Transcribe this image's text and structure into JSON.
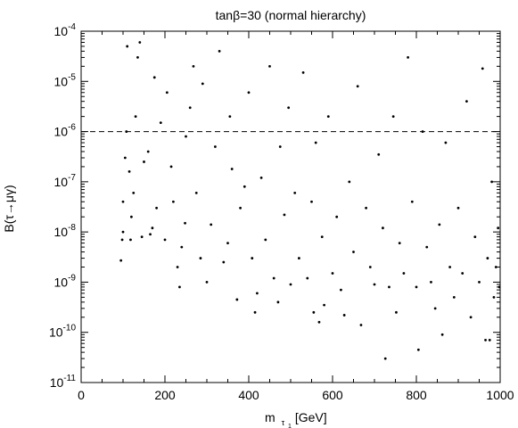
{
  "chart_data": {
    "type": "scatter",
    "title": "tanβ=30 (normal hierarchy)",
    "xlabel": {
      "main": "m",
      "sub": "τ",
      "subsub": "1",
      "unit": " [GeV]"
    },
    "ylabel": "B(τ→μγ)",
    "x_scale": "linear",
    "y_scale": "log",
    "xlim": [
      0,
      1000
    ],
    "ylim": [
      1e-11,
      0.0001
    ],
    "x_ticks": [
      {
        "value": 0,
        "label": "0"
      },
      {
        "value": 200,
        "label": "200"
      },
      {
        "value": 400,
        "label": "400"
      },
      {
        "value": 600,
        "label": "600"
      },
      {
        "value": 800,
        "label": "800"
      },
      {
        "value": 1000,
        "label": "1000"
      }
    ],
    "y_ticks": [
      {
        "value": 1e-11,
        "base": "10",
        "exp": "-11"
      },
      {
        "value": 1e-10,
        "base": "10",
        "exp": "-10"
      },
      {
        "value": 1e-09,
        "base": "10",
        "exp": "-9"
      },
      {
        "value": 1e-08,
        "base": "10",
        "exp": "-8"
      },
      {
        "value": 1e-07,
        "base": "10",
        "exp": "-7"
      },
      {
        "value": 1e-06,
        "base": "10",
        "exp": "-6"
      },
      {
        "value": 1e-05,
        "base": "10",
        "exp": "-5"
      },
      {
        "value": 0.0001,
        "base": "10",
        "exp": "-4"
      }
    ],
    "reference_line": {
      "y": 1e-06,
      "style": "dashed"
    },
    "grid": false,
    "legend": "none",
    "series": [
      {
        "color": "#000000",
        "points": [
          [
            95,
            2.7e-09
          ],
          [
            98,
            7e-09
          ],
          [
            100,
            1e-08
          ],
          [
            100,
            4e-08
          ],
          [
            105,
            3e-07
          ],
          [
            108,
            1e-06
          ],
          [
            110,
            5e-05
          ],
          [
            115,
            1.6e-07
          ],
          [
            118,
            7e-09
          ],
          [
            120,
            2e-08
          ],
          [
            125,
            6e-08
          ],
          [
            130,
            2e-06
          ],
          [
            135,
            3e-05
          ],
          [
            140,
            6e-05
          ],
          [
            145,
            8e-09
          ],
          [
            150,
            2.5e-07
          ],
          [
            160,
            4e-07
          ],
          [
            165,
            9e-09
          ],
          [
            170,
            1.2e-08
          ],
          [
            175,
            1.2e-05
          ],
          [
            180,
            3e-08
          ],
          [
            190,
            1.5e-06
          ],
          [
            200,
            7e-09
          ],
          [
            205,
            6e-06
          ],
          [
            215,
            2e-07
          ],
          [
            220,
            4e-08
          ],
          [
            230,
            2e-09
          ],
          [
            235,
            8e-10
          ],
          [
            240,
            5e-09
          ],
          [
            248,
            1.5e-08
          ],
          [
            250,
            8e-07
          ],
          [
            260,
            3e-06
          ],
          [
            268,
            2e-05
          ],
          [
            275,
            6e-08
          ],
          [
            285,
            3e-09
          ],
          [
            290,
            9e-06
          ],
          [
            300,
            1e-09
          ],
          [
            310,
            1.4e-08
          ],
          [
            320,
            5e-07
          ],
          [
            330,
            4e-05
          ],
          [
            340,
            2.5e-09
          ],
          [
            350,
            6e-09
          ],
          [
            355,
            2e-06
          ],
          [
            360,
            1.8e-07
          ],
          [
            372,
            4.5e-10
          ],
          [
            380,
            3e-08
          ],
          [
            390,
            8e-08
          ],
          [
            400,
            6e-06
          ],
          [
            408,
            3e-09
          ],
          [
            415,
            2.5e-10
          ],
          [
            420,
            6e-10
          ],
          [
            430,
            1.2e-07
          ],
          [
            440,
            7e-09
          ],
          [
            450,
            2e-05
          ],
          [
            460,
            1.2e-09
          ],
          [
            470,
            4e-10
          ],
          [
            475,
            5e-07
          ],
          [
            485,
            2.2e-08
          ],
          [
            495,
            3e-06
          ],
          [
            500,
            9e-10
          ],
          [
            510,
            6e-08
          ],
          [
            520,
            3e-09
          ],
          [
            530,
            1.5e-05
          ],
          [
            540,
            1.2e-09
          ],
          [
            550,
            4e-08
          ],
          [
            555,
            2.5e-10
          ],
          [
            560,
            6e-07
          ],
          [
            568,
            1.6e-10
          ],
          [
            575,
            8e-09
          ],
          [
            580,
            3.5e-10
          ],
          [
            590,
            2e-06
          ],
          [
            600,
            1.5e-09
          ],
          [
            610,
            2e-08
          ],
          [
            620,
            7e-10
          ],
          [
            628,
            2.2e-10
          ],
          [
            640,
            1e-07
          ],
          [
            650,
            4e-09
          ],
          [
            660,
            8e-06
          ],
          [
            668,
            1.4e-10
          ],
          [
            680,
            3e-08
          ],
          [
            690,
            2e-09
          ],
          [
            700,
            9e-10
          ],
          [
            710,
            3.5e-07
          ],
          [
            720,
            1.2e-08
          ],
          [
            726,
            3e-11
          ],
          [
            735,
            8e-10
          ],
          [
            745,
            2e-06
          ],
          [
            752,
            2.5e-10
          ],
          [
            760,
            6e-09
          ],
          [
            770,
            1.5e-09
          ],
          [
            780,
            3e-05
          ],
          [
            790,
            4e-08
          ],
          [
            800,
            8e-10
          ],
          [
            805,
            4.5e-11
          ],
          [
            815,
            1e-06
          ],
          [
            825,
            5e-09
          ],
          [
            835,
            1e-09
          ],
          [
            845,
            3e-10
          ],
          [
            855,
            1.4e-08
          ],
          [
            862,
            9e-11
          ],
          [
            870,
            6e-07
          ],
          [
            880,
            2e-09
          ],
          [
            890,
            5e-10
          ],
          [
            900,
            3e-08
          ],
          [
            910,
            1.5e-09
          ],
          [
            920,
            4e-06
          ],
          [
            930,
            2e-10
          ],
          [
            940,
            8e-09
          ],
          [
            950,
            1e-09
          ],
          [
            958,
            1.8e-05
          ],
          [
            965,
            7e-11
          ],
          [
            970,
            3e-09
          ],
          [
            975,
            7e-11
          ],
          [
            980,
            1e-07
          ],
          [
            985,
            5e-10
          ],
          [
            990,
            2e-09
          ],
          [
            995,
            1.2e-08
          ],
          [
            998,
            8e-10
          ]
        ]
      }
    ]
  }
}
